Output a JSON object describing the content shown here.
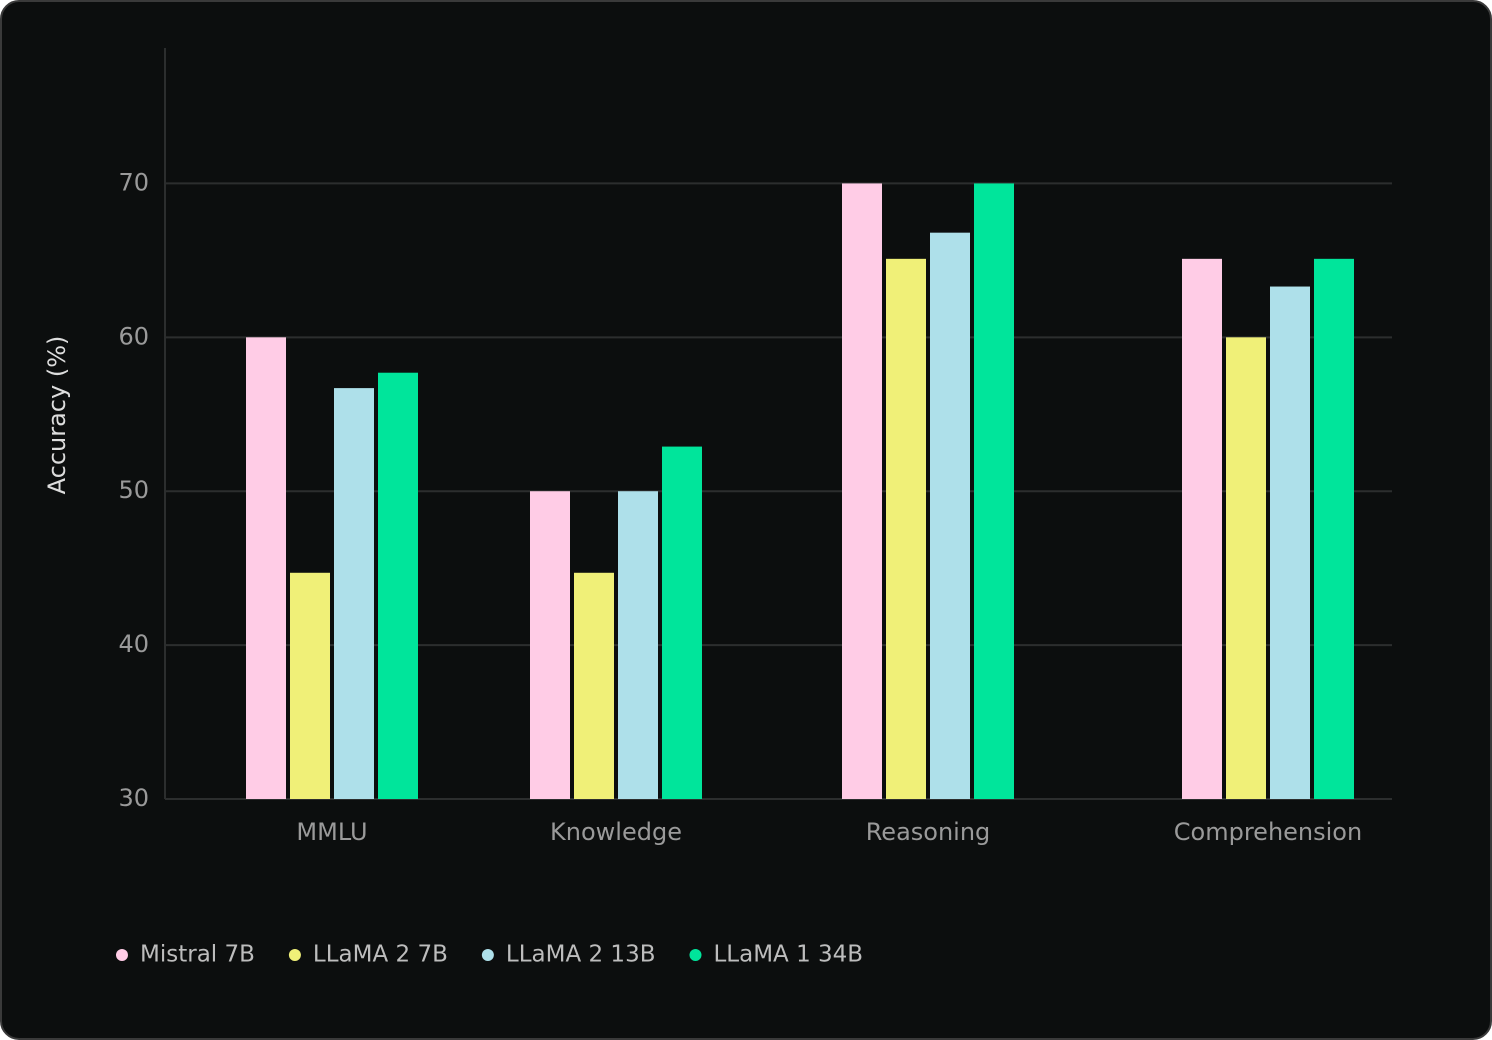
{
  "chart_data": {
    "type": "bar",
    "ylabel": "Accuracy (%)",
    "categories": [
      "MMLU",
      "Knowledge",
      "Reasoning",
      "Comprehension"
    ],
    "series": [
      {
        "name": "Mistral 7B",
        "color": "#ffcce6",
        "values": [
          60,
          50,
          70,
          65.1
        ]
      },
      {
        "name": "LLaMA 2 7B",
        "color": "#f0f078",
        "values": [
          44.7,
          44.7,
          65.1,
          60
        ]
      },
      {
        "name": "LLaMA 2 13B",
        "color": "#aee0ea",
        "values": [
          56.7,
          50,
          66.8,
          63.3
        ]
      },
      {
        "name": "LLaMA 1 34B",
        "color": "#00e59b",
        "values": [
          57.7,
          52.9,
          70,
          65.1
        ]
      }
    ],
    "ylim": [
      30,
      78.8
    ],
    "yticks": [
      30,
      40,
      50,
      60,
      70
    ],
    "grid": true,
    "legend": "bottom"
  }
}
